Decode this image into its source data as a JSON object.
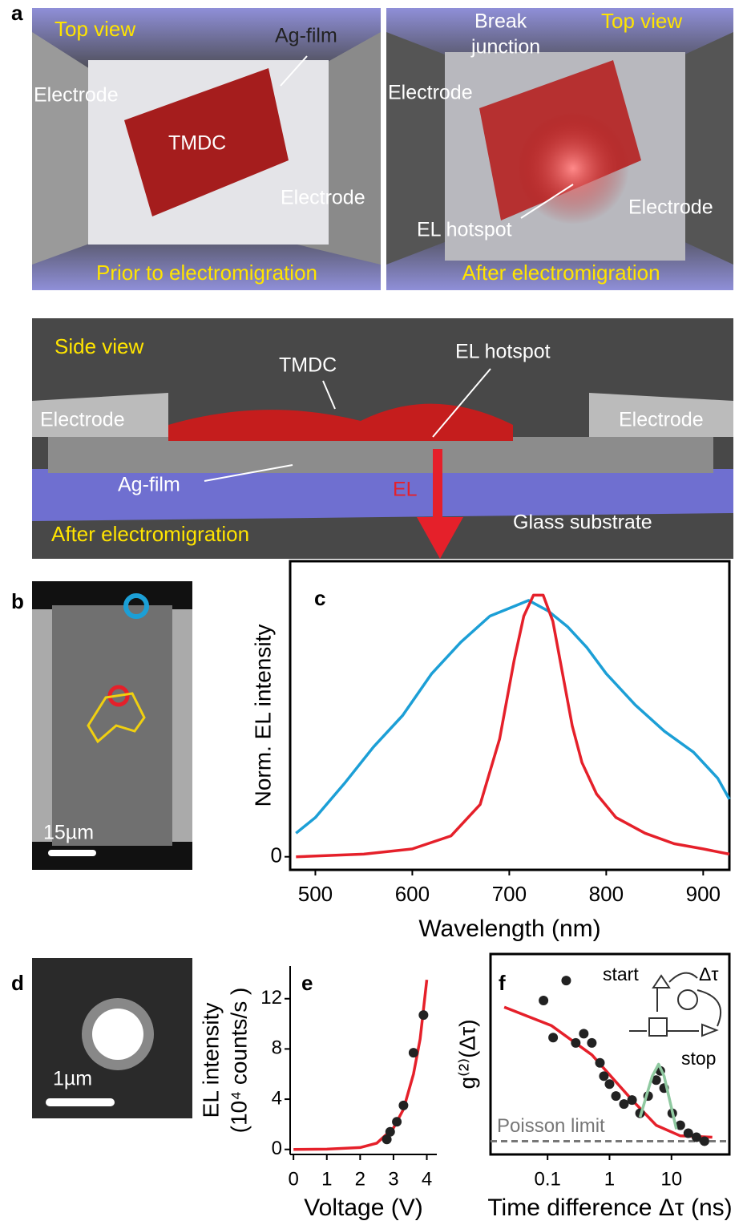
{
  "panel_a": {
    "letter": "a",
    "top_left": {
      "view": "Top view",
      "ag": "Ag-film",
      "electrode_left": "Electrode",
      "tmdc": "TMDC",
      "electrode_right": "Electrode",
      "caption": "Prior to electromigration"
    },
    "top_right": {
      "break": "Break",
      "junction": "junction",
      "view": "Top view",
      "electrode_left": "Electrode",
      "electrode_right": "Electrode",
      "hotspot": "EL hotspot",
      "caption": "After electromigration"
    },
    "side": {
      "view": "Side view",
      "tmdc": "TMDC",
      "hotspot": "EL hotspot",
      "electrode_left": "Electrode",
      "electrode_right": "Electrode",
      "ag": "Ag-film",
      "el": "EL",
      "glass": "Glass substrate",
      "caption": "After electromigration"
    }
  },
  "panel_b": {
    "letter": "b",
    "scale": "15µm"
  },
  "panel_d": {
    "letter": "d",
    "scale": "1µm"
  },
  "chart_data": [
    {
      "type": "line",
      "label": "c",
      "y_label": "Norm. EL intensity",
      "x_label": "Wavelength (nm)",
      "xlim": [
        474,
        927
      ],
      "ylim": [
        -0.05,
        1.13
      ],
      "xticks": [
        500,
        600,
        700,
        800,
        900
      ],
      "yticks": [
        0
      ],
      "series": [
        {
          "color": "#1c9fd6",
          "x": [
            480,
            500,
            530,
            560,
            590,
            620,
            650,
            680,
            700,
            720,
            740,
            760,
            780,
            800,
            830,
            860,
            890,
            915,
            927
          ],
          "values": [
            0.09,
            0.15,
            0.28,
            0.42,
            0.54,
            0.7,
            0.82,
            0.92,
            0.95,
            0.98,
            0.94,
            0.88,
            0.8,
            0.7,
            0.58,
            0.48,
            0.4,
            0.3,
            0.22
          ]
        },
        {
          "color": "#e5202a",
          "x": [
            480,
            550,
            600,
            640,
            670,
            690,
            705,
            715,
            725,
            735,
            745,
            755,
            765,
            775,
            790,
            810,
            840,
            870,
            900,
            927
          ],
          "values": [
            0,
            0.01,
            0.03,
            0.08,
            0.2,
            0.45,
            0.75,
            0.92,
            1.0,
            1.0,
            0.9,
            0.7,
            0.5,
            0.36,
            0.24,
            0.15,
            0.09,
            0.05,
            0.03,
            0.01
          ]
        }
      ]
    },
    {
      "type": "scatter",
      "label": "e",
      "y_label": [
        "EL intensity",
        "(10⁴ counts/s )"
      ],
      "x_label": "Voltage (V)",
      "xlim": [
        -0.1,
        4.3
      ],
      "ylim": [
        -0.4,
        14.6
      ],
      "xticks": [
        0,
        1,
        2,
        3,
        4
      ],
      "yticks": [
        0,
        4,
        8,
        12
      ],
      "series": [
        {
          "color": "#e5202a",
          "mode": "line",
          "x": [
            0,
            1,
            2,
            2.5,
            3,
            3.3,
            3.6,
            3.8,
            4
          ],
          "values": [
            0,
            0.02,
            0.15,
            0.5,
            1.7,
            3.2,
            6.0,
            8.8,
            13.5
          ]
        },
        {
          "color": "#222222",
          "mode": "markers",
          "x": [
            2.8,
            2.9,
            3.1,
            3.3,
            3.6,
            3.9
          ],
          "values": [
            0.8,
            1.4,
            2.2,
            3.5,
            7.7,
            10.7
          ]
        }
      ]
    },
    {
      "type": "scatter",
      "label": "f",
      "y_label": "g⁽²⁾(Δτ)",
      "x_label": "Time difference Δτ (ns)",
      "log_x": true,
      "xlim": [
        0.012,
        86
      ],
      "ylim": [
        0.9,
        2.41
      ],
      "xticks": [
        0.1,
        1,
        10
      ],
      "yticks": [],
      "reference": {
        "value": 1.0,
        "label": "Poisson limit",
        "color": "#777777"
      },
      "inset": {
        "start": "start",
        "stop": "stop",
        "delay": "Δτ"
      },
      "series": [
        {
          "color": "#e5202a",
          "mode": "line",
          "x": [
            0.02,
            0.116,
            0.52,
            2.31,
            5.66,
            13.9,
            45.6
          ],
          "values": [
            2.01,
            1.87,
            1.65,
            1.31,
            1.12,
            1.04,
            1.03
          ]
        },
        {
          "color": "#222222",
          "mode": "markers",
          "x": [
            0.086,
            0.123,
            0.2,
            0.285,
            0.384,
            0.518,
            0.7,
            0.81,
            1.0,
            1.27,
            1.71,
            2.31,
            3.11,
            4.2,
            5.66,
            6.6,
            7.6,
            10.3,
            13.9,
            18.7,
            25.3,
            34.1
          ],
          "values": [
            2.06,
            1.78,
            2.21,
            1.74,
            1.81,
            1.74,
            1.59,
            1.49,
            1.43,
            1.34,
            1.28,
            1.31,
            1.21,
            1.34,
            1.46,
            1.53,
            1.4,
            1.21,
            1.12,
            1.06,
            1.03,
            1.0
          ]
        },
        {
          "color": "#8fc9a0",
          "mode": "line",
          "x": [
            3.11,
            4.9,
            6.2,
            7.6,
            12.0
          ],
          "values": [
            1.18,
            1.49,
            1.58,
            1.49,
            1.09
          ]
        }
      ]
    }
  ]
}
